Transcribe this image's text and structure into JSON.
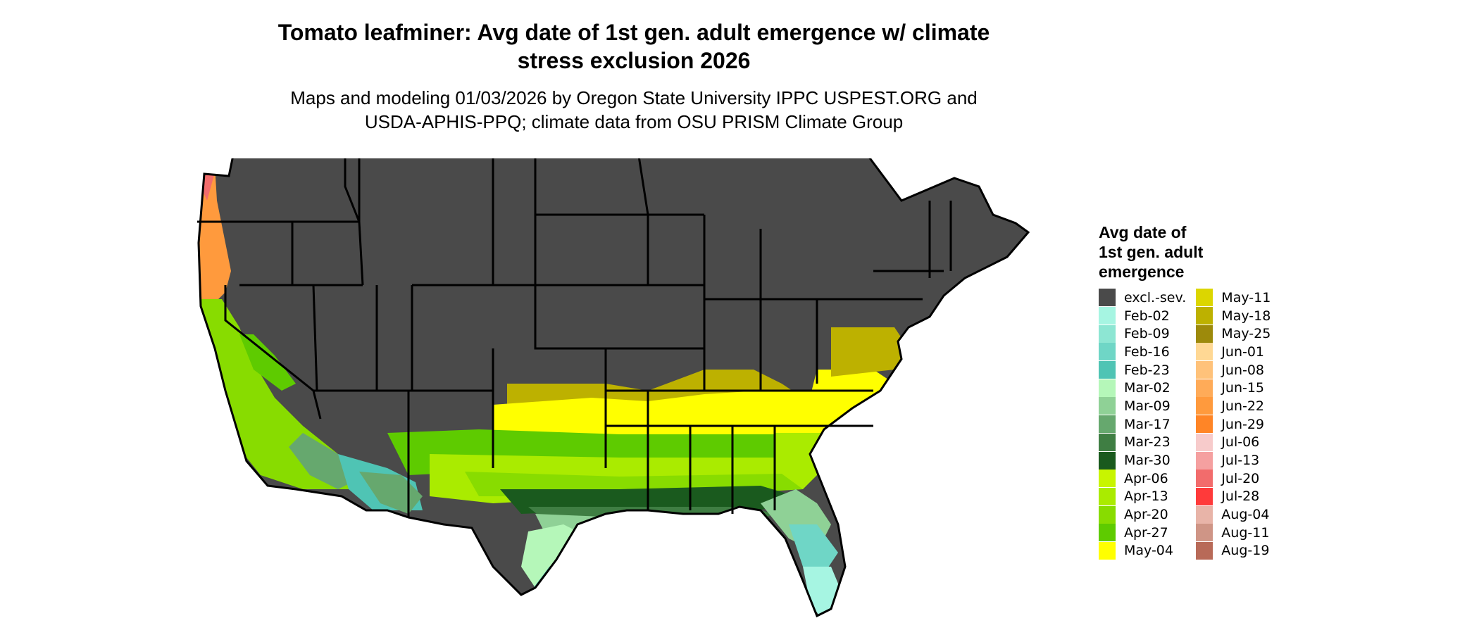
{
  "header": {
    "title_line1": "Tomato leafminer: Avg date of 1st gen. adult emergence w/ climate",
    "title_line2": "stress exclusion 2026",
    "subtitle_line1": "Maps and modeling 01/03/2026 by Oregon State University IPPC USPEST.ORG and",
    "subtitle_line2": "USDA-APHIS-PPQ; climate data from OSU PRISM Climate Group"
  },
  "legend": {
    "title_line1": "Avg date of",
    "title_line2": "1st gen. adult",
    "title_line3": "emergence",
    "column1": [
      {
        "label": "excl.-sev.",
        "color": "#4a4a4a"
      },
      {
        "label": "Feb-02",
        "color": "#a6f5e2"
      },
      {
        "label": "Feb-09",
        "color": "#8de6d3"
      },
      {
        "label": "Feb-16",
        "color": "#6fd6c6"
      },
      {
        "label": "Feb-23",
        "color": "#4fc4b4"
      },
      {
        "label": "Mar-02",
        "color": "#b5f7b9"
      },
      {
        "label": "Mar-09",
        "color": "#8fd196"
      },
      {
        "label": "Mar-17",
        "color": "#66a86e"
      },
      {
        "label": "Mar-23",
        "color": "#3f7e43"
      },
      {
        "label": "Mar-30",
        "color": "#1a5a1e"
      },
      {
        "label": "Apr-06",
        "color": "#c8f500"
      },
      {
        "label": "Apr-13",
        "color": "#aaeb00"
      },
      {
        "label": "Apr-20",
        "color": "#88dc00"
      },
      {
        "label": "Apr-27",
        "color": "#5ecb00"
      },
      {
        "label": "May-04",
        "color": "#ffff00"
      }
    ],
    "column2": [
      {
        "label": "May-11",
        "color": "#dcd600"
      },
      {
        "label": "May-18",
        "color": "#bdb100"
      },
      {
        "label": "May-25",
        "color": "#9d8a0b"
      },
      {
        "label": "Jun-01",
        "color": "#ffd894"
      },
      {
        "label": "Jun-08",
        "color": "#ffc27a"
      },
      {
        "label": "Jun-15",
        "color": "#ffab58"
      },
      {
        "label": "Jun-22",
        "color": "#ff9a3d"
      },
      {
        "label": "Jun-29",
        "color": "#ff8526"
      },
      {
        "label": "Jul-06",
        "color": "#f7cbcb"
      },
      {
        "label": "Jul-13",
        "color": "#f5a0a0"
      },
      {
        "label": "Jul-20",
        "color": "#f26c6c"
      },
      {
        "label": "Jul-28",
        "color": "#ff3a3a"
      },
      {
        "label": "Aug-04",
        "color": "#e8b4a8"
      },
      {
        "label": "Aug-11",
        "color": "#cf9586"
      },
      {
        "label": "Aug-19",
        "color": "#b86a58"
      }
    ]
  }
}
